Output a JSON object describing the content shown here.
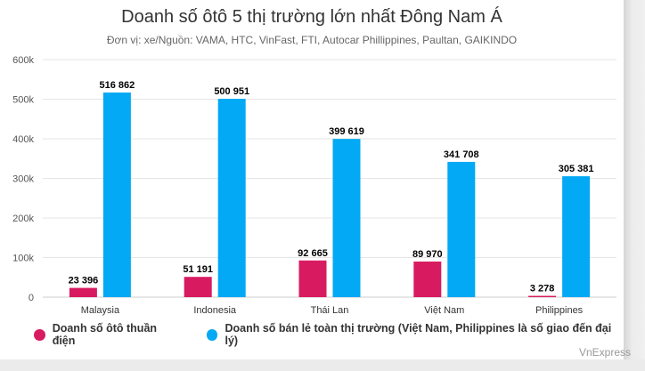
{
  "chart_data": {
    "type": "bar",
    "title": "Doanh số ôtô 5 thị trường lớn nhất Đông Nam Á",
    "subtitle": "Đơn vị: xe/Nguồn: VAMA, HTC, VinFast, FTI, Autocar Phillippines, Paultan, GAIKINDO",
    "categories": [
      "Malaysia",
      "Indonesia",
      "Thái Lan",
      "Việt Nam",
      "Philippines"
    ],
    "series": [
      {
        "name": "Doanh số ôtô thuần điện",
        "color": "#d81b60",
        "values": [
          23396,
          51191,
          92665,
          89970,
          3278
        ],
        "labels": [
          "23 396",
          "51 191",
          "92 665",
          "89 970",
          "3 278"
        ]
      },
      {
        "name": "Doanh số bán lẻ toàn thị trường (Việt Nam, Philippines là số giao đến đại lý)",
        "color": "#03a9f4",
        "values": [
          516862,
          500951,
          399619,
          341708,
          305381
        ],
        "labels": [
          "516 862",
          "500 951",
          "399 619",
          "341 708",
          "305 381"
        ]
      }
    ],
    "yticks": [
      0,
      100000,
      200000,
      300000,
      400000,
      500000,
      600000
    ],
    "ytick_labels": [
      "0",
      "100k",
      "200k",
      "300k",
      "400k",
      "500k",
      "600k"
    ],
    "ylim": [
      0,
      600000
    ],
    "xlabel": "",
    "ylabel": "",
    "grid": true,
    "legend_position": "bottom-left"
  },
  "credit": "VnExpress"
}
